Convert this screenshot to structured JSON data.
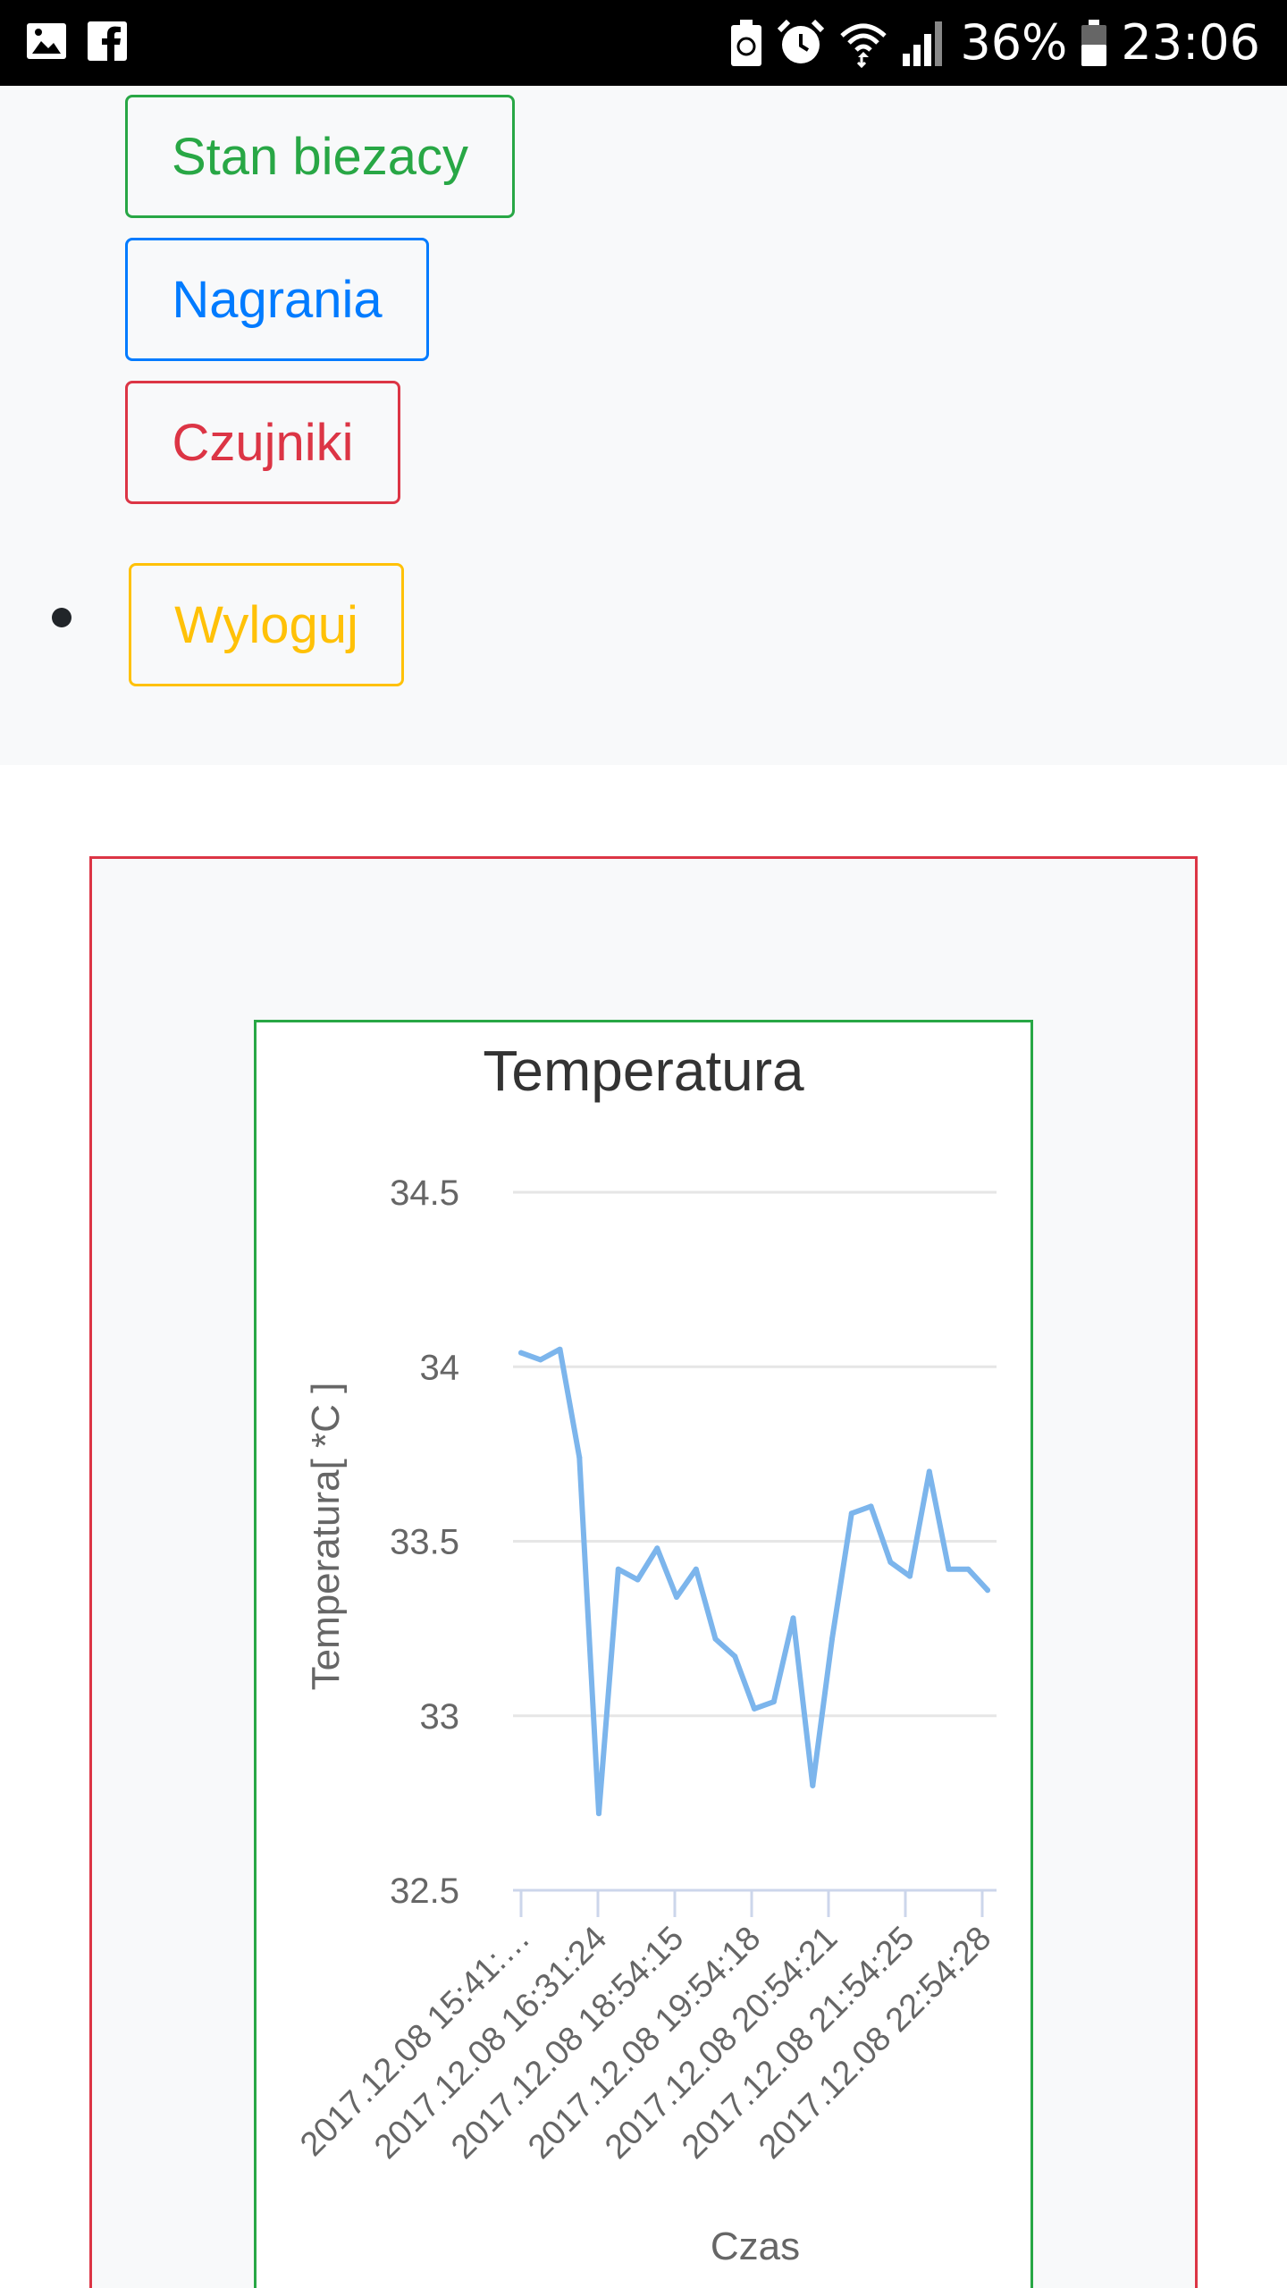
{
  "status_bar": {
    "battery": "36%",
    "time": "23:06",
    "left_icons": [
      "gallery-icon",
      "facebook-icon"
    ],
    "right_icons": [
      "battery-saver-icon",
      "alarm-icon",
      "wifi-icon",
      "signal-icon",
      "battery-icon"
    ]
  },
  "nav": {
    "current_state_label": "Stan biezacy",
    "recordings_label": "Nagrania",
    "sensors_label": "Czujniki",
    "logout_label": "Wyloguj"
  },
  "colors": {
    "success": "#28a745",
    "primary": "#007bff",
    "danger": "#dc3545",
    "warning": "#ffc107",
    "series": "#7cb5ec"
  },
  "chart_data": {
    "type": "line",
    "title": "Temperatura",
    "xlabel": "Czas",
    "ylabel": "Temperatura[ *C ]",
    "ylim": [
      32.5,
      34.5
    ],
    "yticks": [
      "34.5",
      "34",
      "33.5",
      "33",
      "32.5"
    ],
    "xticks": [
      "2017.12.08 15:41:…",
      "2017.12.08 16:31:24",
      "2017.12.08 18:54:15",
      "2017.12.08 19:54:18",
      "2017.12.08 20:54:21",
      "2017.12.08 21:54:25",
      "2017.12.08 22:54:28"
    ],
    "grid": true,
    "series": [
      {
        "values": [
          34.04,
          34.02,
          34.05,
          33.74,
          32.72,
          33.42,
          33.39,
          33.48,
          33.34,
          33.42,
          33.22,
          33.17,
          33.02,
          33.04,
          33.28,
          32.8,
          33.22,
          33.58,
          33.6,
          33.44,
          33.4,
          33.7,
          33.42,
          33.42,
          33.36
        ]
      }
    ]
  }
}
